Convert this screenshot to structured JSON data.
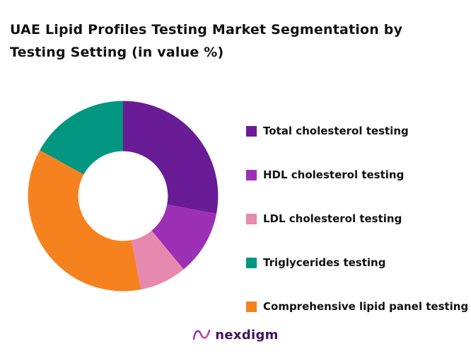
{
  "title": "UAE Lipid Profiles Testing Market Segmentation by Testing Setting (in value %)",
  "chart_data": {
    "type": "pie",
    "subtype": "donut",
    "start_angle_deg": 0,
    "direction": "clockwise",
    "inner_radius_ratio": 0.47,
    "legend_position": "right",
    "data_labels_shown": false,
    "units": "value %",
    "title": "UAE Lipid Profiles Testing Market Segmentation by Testing Setting (in value %)",
    "slices": [
      {
        "label": "Total cholesterol testing",
        "value": 28,
        "color": "#6A1C96"
      },
      {
        "label": "HDL cholesterol testing",
        "value": 11,
        "color": "#9B30B5"
      },
      {
        "label": "LDL cholesterol testing",
        "value": 8,
        "color": "#E689AE"
      },
      {
        "label": "Comprehensive lipid panel testing",
        "value": 36,
        "color": "#F6821F"
      },
      {
        "label": "Triglycerides testing",
        "value": 17,
        "color": "#009681"
      }
    ],
    "legend_order": [
      0,
      1,
      2,
      4,
      3
    ]
  },
  "footer": {
    "brand": "nexdigm",
    "brand_color": "#42145F",
    "icon": "nexdigm-wave-logo-icon",
    "icon_gradient": [
      "#7B2FBE",
      "#E0559B"
    ]
  }
}
